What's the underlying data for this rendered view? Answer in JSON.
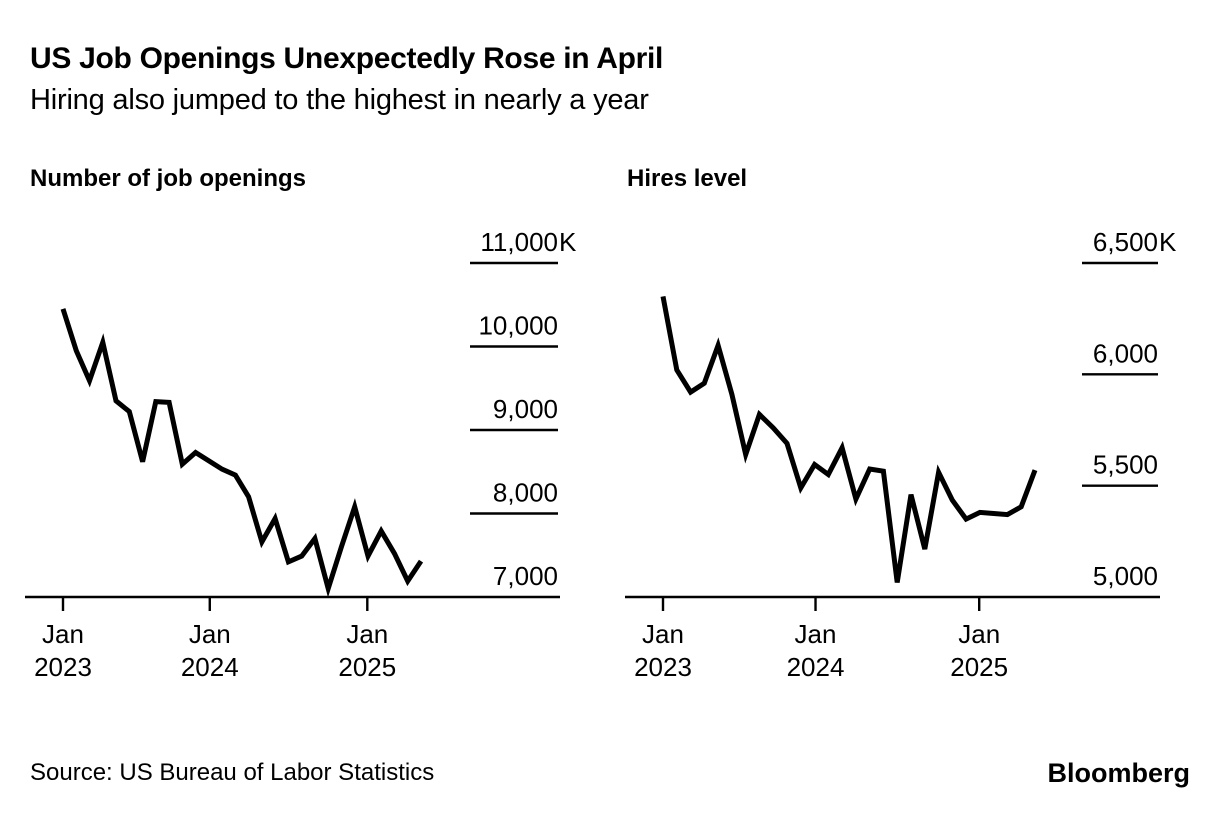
{
  "page": {
    "title": "US Job Openings Unexpectedly Rose in April",
    "subtitle": "Hiring also jumped to the highest in nearly a year",
    "source": "Source: US Bureau of Labor Statistics",
    "brand": "Bloomberg",
    "text_color": "#000000",
    "background_color": "#ffffff",
    "line_color": "#000000"
  },
  "chart_data": [
    {
      "type": "line",
      "title": "Number of job openings",
      "unit": "thousands",
      "legend_position": "none",
      "grid": "short right-side tick segments",
      "categories": [
        "Jan 2023",
        "Feb 2023",
        "Mar 2023",
        "Apr 2023",
        "May 2023",
        "Jun 2023",
        "Jul 2023",
        "Aug 2023",
        "Sep 2023",
        "Oct 2023",
        "Nov 2023",
        "Dec 2023",
        "Jan 2024",
        "Feb 2024",
        "Mar 2024",
        "Apr 2024",
        "May 2024",
        "Jun 2024",
        "Jul 2024",
        "Aug 2024",
        "Sep 2024",
        "Oct 2024",
        "Nov 2024",
        "Dec 2024",
        "Jan 2025",
        "Feb 2025",
        "Mar 2025",
        "Apr 2025"
      ],
      "values": [
        10450,
        9950,
        9590,
        10050,
        9350,
        9220,
        8620,
        9340,
        9330,
        8590,
        8730,
        8630,
        8530,
        8460,
        8200,
        7660,
        7940,
        7420,
        7490,
        7700,
        7100,
        7600,
        8080,
        7490,
        7790,
        7520,
        7190,
        7430
      ],
      "ylim": [
        7000,
        11000
      ],
      "yticks": [
        {
          "value": 11000,
          "label": "11,000K"
        },
        {
          "value": 10000,
          "label": "10,000"
        },
        {
          "value": 9000,
          "label": "9,000"
        },
        {
          "value": 8000,
          "label": "8,000"
        },
        {
          "value": 7000,
          "label": "7,000"
        }
      ],
      "xticks": [
        {
          "label_top": "Jan",
          "label_bottom": "2023",
          "fraction": 0
        },
        {
          "label_top": "Jan",
          "label_bottom": "2024",
          "fraction": 0.41
        },
        {
          "label_top": "Jan",
          "label_bottom": "2025",
          "fraction": 0.85
        }
      ]
    },
    {
      "type": "line",
      "title": "Hires level",
      "unit": "thousands",
      "legend_position": "none",
      "grid": "short right-side tick segments",
      "categories": [
        "Jan 2023",
        "Feb 2023",
        "Mar 2023",
        "Apr 2023",
        "May 2023",
        "Jun 2023",
        "Jul 2023",
        "Aug 2023",
        "Sep 2023",
        "Oct 2023",
        "Nov 2023",
        "Dec 2023",
        "Jan 2024",
        "Feb 2024",
        "Mar 2024",
        "Apr 2024",
        "May 2024",
        "Jun 2024",
        "Jul 2024",
        "Aug 2024",
        "Sep 2024",
        "Oct 2024",
        "Nov 2024",
        "Dec 2024",
        "Jan 2025",
        "Feb 2025",
        "Mar 2025",
        "Apr 2025"
      ],
      "values": [
        6350,
        6020,
        5920,
        5960,
        6130,
        5910,
        5640,
        5820,
        5760,
        5690,
        5490,
        5595,
        5550,
        5670,
        5440,
        5575,
        5565,
        5065,
        5460,
        5215,
        5560,
        5435,
        5350,
        5380,
        5375,
        5370,
        5405,
        5570
      ],
      "ylim": [
        5000,
        6500
      ],
      "yticks": [
        {
          "value": 6500,
          "label": "6,500K"
        },
        {
          "value": 6000,
          "label": "6,000"
        },
        {
          "value": 5500,
          "label": "5,500"
        },
        {
          "value": 5000,
          "label": "5,000"
        }
      ],
      "xticks": [
        {
          "label_top": "Jan",
          "label_bottom": "2023",
          "fraction": 0
        },
        {
          "label_top": "Jan",
          "label_bottom": "2024",
          "fraction": 0.41
        },
        {
          "label_top": "Jan",
          "label_bottom": "2025",
          "fraction": 0.85
        }
      ]
    }
  ]
}
